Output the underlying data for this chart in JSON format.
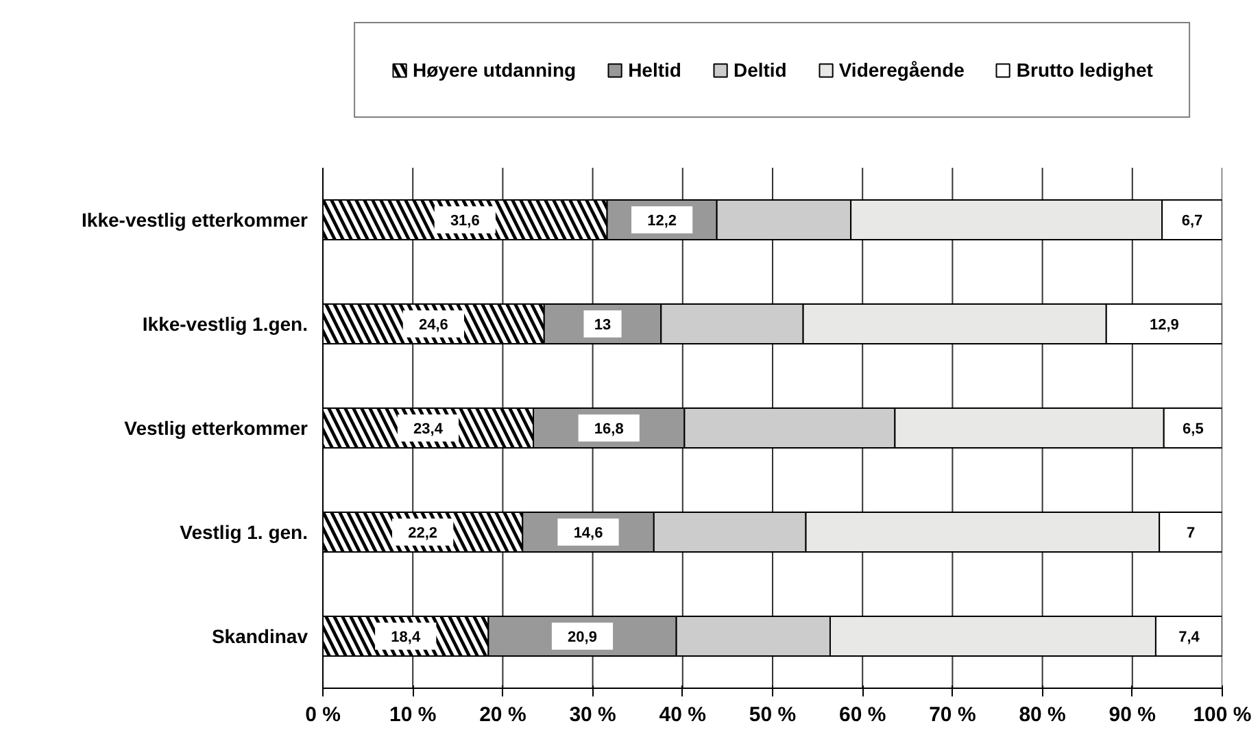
{
  "chart_data": {
    "type": "bar",
    "orientation": "horizontal",
    "stacked": true,
    "categories": [
      "Ikke-vestlig etterkommer",
      "Ikke-vestlig 1.gen.",
      "Vestlig etterkommer",
      "Vestlig 1. gen.",
      "Skandinav"
    ],
    "series": [
      {
        "name": "Høyere utdanning",
        "color": "#000000",
        "values": [
          31.6,
          24.6,
          23.4,
          22.2,
          18.4
        ],
        "value_labels": [
          "31,6",
          "24,6",
          "23,4",
          "22,2",
          "18,4"
        ]
      },
      {
        "name": "Heltid",
        "color": "#999999",
        "values": [
          12.2,
          13,
          16.8,
          14.6,
          20.9
        ],
        "value_labels": [
          "12,2",
          "13",
          "16,8",
          "14,6",
          "20,9"
        ]
      },
      {
        "name": "Deltid",
        "color": "#cccccc",
        "values": [
          14.9,
          15.8,
          23.4,
          16.9,
          17.1
        ]
      },
      {
        "name": "Videregående",
        "color": "#e8e8e6",
        "values": [
          34.6,
          33.7,
          29.9,
          39.3,
          36.2
        ]
      },
      {
        "name": "Brutto ledighet",
        "color": "#ffffff",
        "values": [
          6.7,
          12.9,
          6.5,
          7,
          7.4
        ],
        "value_labels": [
          "6,7",
          "12,9",
          "6,5",
          "7",
          "7,4"
        ]
      }
    ],
    "xlim": [
      0,
      100
    ],
    "xticks": [
      {
        "value": 0,
        "label": "0 %"
      },
      {
        "value": 10,
        "label": "10 %"
      },
      {
        "value": 20,
        "label": "20 %"
      },
      {
        "value": 30,
        "label": "30 %"
      },
      {
        "value": 40,
        "label": "40 %"
      },
      {
        "value": 50,
        "label": "50 %"
      },
      {
        "value": 60,
        "label": "60 %"
      },
      {
        "value": 70,
        "label": "70 %"
      },
      {
        "value": 80,
        "label": "80 %"
      },
      {
        "value": 90,
        "label": "90 %"
      },
      {
        "value": 100,
        "label": "100 %"
      }
    ],
    "grid": "x",
    "legend": "top"
  }
}
